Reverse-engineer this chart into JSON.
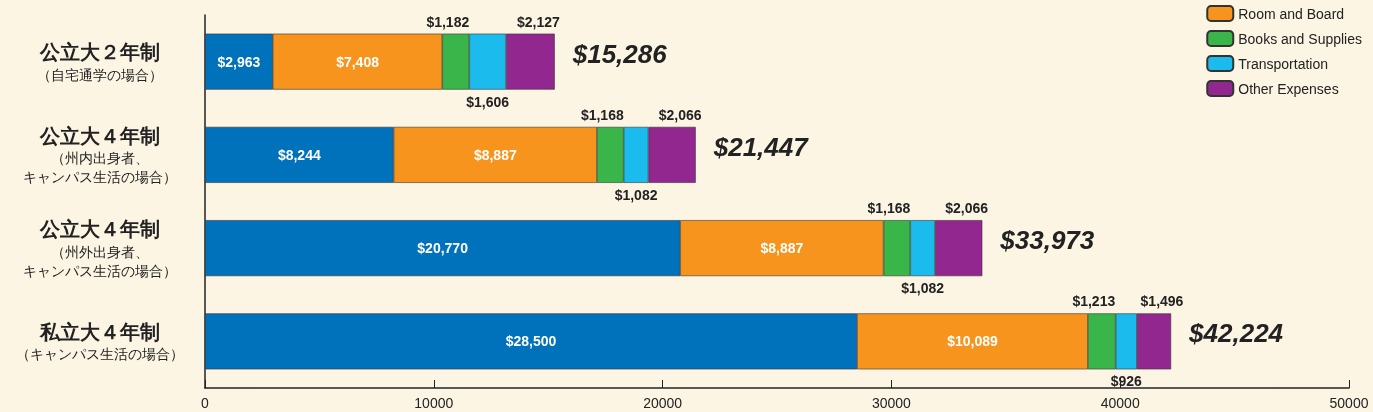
{
  "chart_data": {
    "type": "bar",
    "orientation": "horizontal",
    "stacked": true,
    "categories": [
      "公立大２年制（自宅通学の場合）",
      "公立大４年制（州内出身者、キャンパス生活の場合）",
      "公立大４年制（州外出身者、キャンパス生活の場合）",
      "私立大４年制（キャンパス生活の場合）"
    ],
    "series": [
      {
        "color": "#0071bb",
        "values": [
          2963,
          8244,
          20770,
          28500
        ],
        "value_labels": [
          "$2,963",
          "$8,244",
          "$20,770",
          "$28,500"
        ]
      },
      {
        "name": "Room and Board",
        "color": "#f7941d",
        "values": [
          7408,
          8887,
          8887,
          10089
        ],
        "value_labels": [
          "$7,408",
          "$8,887",
          "$8,887",
          "$10,089"
        ]
      },
      {
        "name": "Books and Supplies",
        "color": "#39b54a",
        "values": [
          1182,
          1168,
          1168,
          1213
        ],
        "value_labels": [
          "$1,182",
          "$1,168",
          "$1,168",
          "$1,213"
        ]
      },
      {
        "name": "Transportation",
        "color": "#1cbbee",
        "values": [
          1606,
          1082,
          1082,
          926
        ],
        "value_labels": [
          "$1,606",
          "$1,082",
          "$1,082",
          "$926"
        ]
      },
      {
        "name": "Other Expenses",
        "color": "#92278f",
        "values": [
          2127,
          2066,
          2066,
          1496
        ],
        "value_labels": [
          "$2,127",
          "$2,066",
          "$2,066",
          "$1,496"
        ]
      }
    ],
    "totals": [
      "$15,286",
      "$21,447",
      "$33,973",
      "$42,224"
    ],
    "xlim": [
      0,
      50000
    ],
    "xticks": [
      0,
      10000,
      20000,
      30000,
      40000,
      50000
    ],
    "grid": false,
    "legend": "top right"
  }
}
